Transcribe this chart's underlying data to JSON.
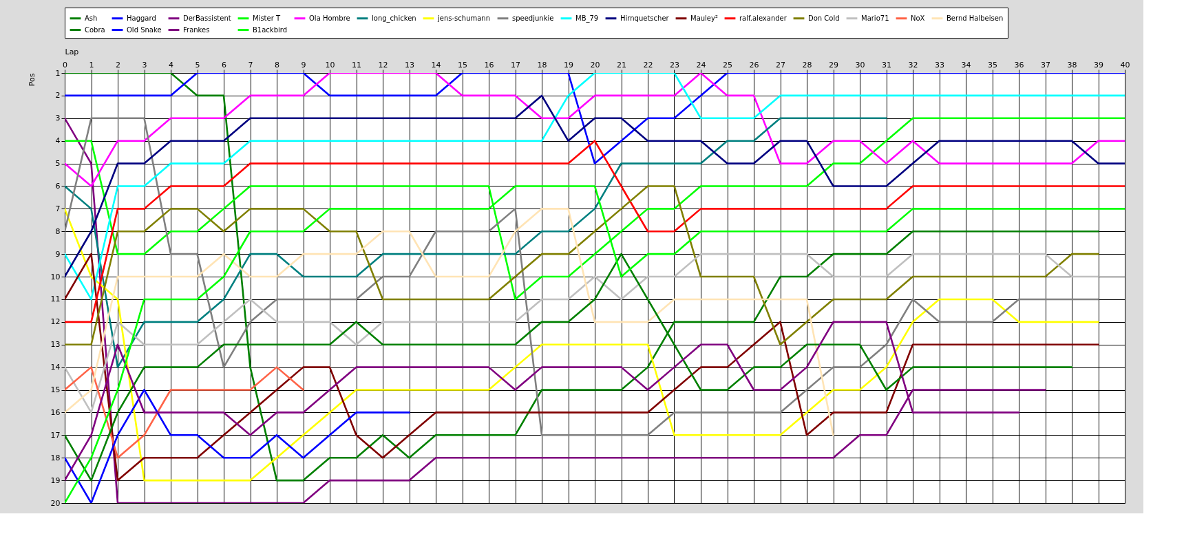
{
  "chart_data": {
    "type": "line",
    "xlabel": "Lap",
    "ylabel": "Pos",
    "x": [
      0,
      1,
      2,
      3,
      4,
      5,
      6,
      7,
      8,
      9,
      10,
      11,
      12,
      13,
      14,
      15,
      16,
      17,
      18,
      19,
      20,
      21,
      22,
      23,
      24,
      25,
      26,
      27,
      28,
      29,
      30,
      31,
      32,
      33,
      34,
      35,
      36,
      37,
      38,
      39,
      40
    ],
    "xlim": [
      0,
      40
    ],
    "xticks": [
      0,
      1,
      2,
      3,
      4,
      5,
      6,
      7,
      8,
      9,
      10,
      11,
      12,
      13,
      14,
      15,
      16,
      17,
      18,
      19,
      20,
      21,
      22,
      23,
      24,
      25,
      26,
      27,
      28,
      29,
      30,
      31,
      32,
      33,
      34,
      35,
      36,
      37,
      38,
      39,
      40
    ],
    "ylim": [
      20,
      1
    ],
    "yticks": [
      1,
      2,
      3,
      4,
      5,
      6,
      7,
      8,
      9,
      10,
      11,
      12,
      13,
      14,
      15,
      16,
      17,
      18,
      19,
      20
    ],
    "grid": true,
    "legend": "top",
    "marker": "none",
    "line_style": "solid",
    "series": [
      {
        "name": "Ash",
        "color": "#008000",
        "values": [
          1,
          1,
          1,
          1,
          1,
          2,
          2,
          14,
          19,
          19,
          18,
          18,
          17,
          18,
          17,
          17,
          17,
          17,
          15,
          15,
          15,
          15,
          14,
          12,
          12,
          12,
          12,
          10,
          10,
          9,
          9,
          9,
          8,
          8,
          8,
          8,
          8,
          8,
          8,
          8,
          null
        ]
      },
      {
        "name": "Haggard",
        "color": "#0000ff",
        "values": [
          2,
          2,
          2,
          2,
          2,
          1,
          1,
          1,
          1,
          1,
          2,
          2,
          2,
          2,
          2,
          1,
          1,
          1,
          1,
          1,
          5,
          4,
          3,
          3,
          2,
          1,
          1,
          1,
          1,
          1,
          1,
          1,
          1,
          1,
          1,
          1,
          1,
          1,
          1,
          1,
          1
        ]
      },
      {
        "name": "DerBassistent",
        "color": "#800080",
        "values": [
          3,
          5,
          20,
          20,
          20,
          20,
          20,
          20,
          20,
          20,
          19,
          19,
          19,
          19,
          18,
          18,
          18,
          18,
          18,
          18,
          18,
          18,
          18,
          18,
          18,
          18,
          18,
          18,
          18,
          18,
          17,
          17,
          15,
          15,
          15,
          15,
          15,
          15,
          null,
          null,
          null
        ]
      },
      {
        "name": "Mister T",
        "color": "#00ff00",
        "values": [
          4,
          4,
          9,
          9,
          8,
          8,
          7,
          6,
          6,
          6,
          6,
          6,
          6,
          6,
          6,
          6,
          6,
          11,
          10,
          10,
          9,
          8,
          7,
          7,
          6,
          6,
          6,
          6,
          6,
          5,
          5,
          4,
          3,
          3,
          3,
          3,
          3,
          3,
          3,
          3,
          3
        ]
      },
      {
        "name": "Ola Hombre",
        "color": "#ff00ff",
        "values": [
          5,
          6,
          4,
          4,
          3,
          3,
          3,
          2,
          2,
          2,
          1,
          1,
          1,
          1,
          1,
          2,
          2,
          2,
          3,
          3,
          2,
          2,
          2,
          2,
          1,
          2,
          2,
          5,
          5,
          4,
          4,
          5,
          4,
          5,
          5,
          5,
          5,
          5,
          5,
          4,
          4
        ]
      },
      {
        "name": "long_chicken",
        "color": "#008080",
        "values": [
          6,
          7,
          14,
          12,
          12,
          12,
          11,
          9,
          9,
          10,
          10,
          10,
          9,
          9,
          9,
          9,
          9,
          9,
          8,
          8,
          7,
          5,
          5,
          5,
          5,
          4,
          4,
          3,
          3,
          3,
          3,
          3,
          null,
          null,
          null,
          null,
          null,
          null,
          null,
          null,
          null
        ]
      },
      {
        "name": "jens-schumann",
        "color": "#ffff00",
        "values": [
          7,
          10,
          11,
          19,
          19,
          19,
          19,
          19,
          18,
          17,
          16,
          15,
          15,
          15,
          15,
          15,
          15,
          14,
          13,
          13,
          13,
          13,
          13,
          17,
          17,
          17,
          17,
          17,
          16,
          15,
          15,
          14,
          12,
          11,
          11,
          11,
          12,
          12,
          12,
          12,
          null
        ]
      },
      {
        "name": "speedjunkie",
        "color": "#808080",
        "values": [
          8,
          3,
          3,
          3,
          9,
          9,
          14,
          12,
          11,
          11,
          11,
          11,
          10,
          10,
          8,
          8,
          8,
          7,
          17,
          17,
          17,
          17,
          17,
          16,
          16,
          16,
          16,
          16,
          15,
          14,
          14,
          13,
          11,
          12,
          12,
          12,
          11,
          11,
          11,
          11,
          null
        ]
      },
      {
        "name": "MB_79",
        "color": "#00ffff",
        "values": [
          9,
          11,
          6,
          6,
          5,
          5,
          5,
          4,
          4,
          4,
          4,
          4,
          4,
          4,
          4,
          4,
          4,
          4,
          4,
          2,
          1,
          1,
          1,
          1,
          3,
          3,
          3,
          2,
          2,
          2,
          2,
          2,
          2,
          2,
          2,
          2,
          2,
          2,
          2,
          2,
          2
        ]
      },
      {
        "name": "Hirnquetscher",
        "color": "#000080",
        "values": [
          10,
          8,
          5,
          5,
          4,
          4,
          4,
          3,
          3,
          3,
          3,
          3,
          3,
          3,
          3,
          3,
          3,
          3,
          2,
          4,
          3,
          3,
          4,
          4,
          4,
          5,
          5,
          4,
          4,
          6,
          6,
          6,
          5,
          4,
          4,
          4,
          4,
          4,
          4,
          5,
          5
        ]
      },
      {
        "name": "Mauley²",
        "color": "#800000",
        "values": [
          11,
          9,
          19,
          18,
          18,
          18,
          17,
          16,
          15,
          14,
          14,
          17,
          18,
          17,
          16,
          16,
          16,
          16,
          16,
          16,
          16,
          16,
          16,
          15,
          14,
          14,
          13,
          12,
          17,
          16,
          16,
          16,
          13,
          13,
          13,
          13,
          13,
          13,
          13,
          13,
          null
        ]
      },
      {
        "name": "ralf.alexander",
        "color": "#ff0000",
        "values": [
          12,
          12,
          7,
          7,
          6,
          6,
          6,
          5,
          5,
          5,
          5,
          5,
          5,
          5,
          5,
          5,
          5,
          5,
          5,
          5,
          4,
          6,
          8,
          8,
          7,
          7,
          7,
          7,
          7,
          7,
          7,
          7,
          6,
          6,
          6,
          6,
          6,
          6,
          6,
          6,
          6
        ]
      },
      {
        "name": "Don Cold",
        "color": "#808000",
        "values": [
          13,
          13,
          8,
          8,
          7,
          7,
          8,
          7,
          7,
          7,
          8,
          8,
          11,
          11,
          11,
          11,
          11,
          10,
          9,
          9,
          8,
          7,
          6,
          6,
          10,
          10,
          10,
          13,
          12,
          11,
          11,
          11,
          10,
          10,
          10,
          10,
          10,
          10,
          9,
          9,
          null
        ]
      },
      {
        "name": "Mario71",
        "color": "#c0c0c0",
        "values": [
          14,
          16,
          12,
          13,
          13,
          13,
          12,
          11,
          12,
          12,
          12,
          13,
          12,
          12,
          12,
          12,
          12,
          12,
          11,
          11,
          10,
          11,
          10,
          10,
          9,
          9,
          9,
          9,
          9,
          10,
          10,
          10,
          9,
          9,
          9,
          9,
          9,
          9,
          10,
          10,
          null
        ]
      },
      {
        "name": "NoX",
        "color": "#ff6347",
        "values": [
          15,
          14,
          18,
          17,
          15,
          15,
          15,
          15,
          14,
          15,
          null,
          null,
          null,
          null,
          null,
          null,
          null,
          null,
          null,
          null,
          null,
          null,
          null,
          null,
          null,
          null,
          null,
          null,
          null,
          null,
          null,
          null,
          null,
          null,
          null,
          null,
          null,
          null,
          null,
          null,
          null
        ]
      },
      {
        "name": "Bernd Halbeisen",
        "color": "#ffe4b5",
        "values": [
          16,
          15,
          10,
          10,
          10,
          10,
          9,
          10,
          10,
          9,
          9,
          9,
          8,
          8,
          10,
          10,
          10,
          8,
          7,
          7,
          12,
          12,
          12,
          11,
          11,
          11,
          11,
          11,
          11,
          17,
          null,
          null,
          null,
          null,
          null,
          null,
          null,
          null,
          null,
          null,
          null
        ]
      },
      {
        "name": "Cobra",
        "color": "#008000",
        "values": [
          17,
          19,
          16,
          14,
          14,
          14,
          13,
          13,
          13,
          13,
          13,
          12,
          13,
          13,
          13,
          13,
          13,
          13,
          12,
          12,
          11,
          9,
          11,
          13,
          15,
          15,
          14,
          14,
          13,
          13,
          13,
          15,
          14,
          14,
          14,
          14,
          14,
          14,
          14,
          null,
          null
        ]
      },
      {
        "name": "Old Snake",
        "color": "#0000ff",
        "values": [
          18,
          20,
          17,
          15,
          17,
          17,
          18,
          18,
          17,
          18,
          17,
          16,
          16,
          16,
          null,
          null,
          null,
          null,
          null,
          null,
          null,
          null,
          null,
          null,
          null,
          null,
          null,
          null,
          null,
          null,
          null,
          null,
          null,
          null,
          null,
          null,
          null,
          null,
          null,
          null,
          null
        ]
      },
      {
        "name": "Frankes",
        "color": "#800080",
        "values": [
          19,
          17,
          13,
          16,
          16,
          16,
          16,
          17,
          16,
          16,
          15,
          14,
          14,
          14,
          14,
          14,
          14,
          15,
          14,
          14,
          14,
          14,
          15,
          14,
          13,
          13,
          15,
          15,
          14,
          12,
          12,
          12,
          16,
          16,
          16,
          16,
          16,
          null,
          null,
          null,
          null
        ]
      },
      {
        "name": "B1ackbird",
        "color": "#00ff00",
        "values": [
          20,
          18,
          15,
          11,
          11,
          11,
          10,
          8,
          8,
          8,
          7,
          7,
          7,
          7,
          7,
          7,
          7,
          6,
          6,
          6,
          6,
          10,
          9,
          9,
          8,
          8,
          8,
          8,
          8,
          8,
          8,
          8,
          7,
          7,
          7,
          7,
          7,
          7,
          7,
          7,
          7
        ]
      }
    ]
  }
}
